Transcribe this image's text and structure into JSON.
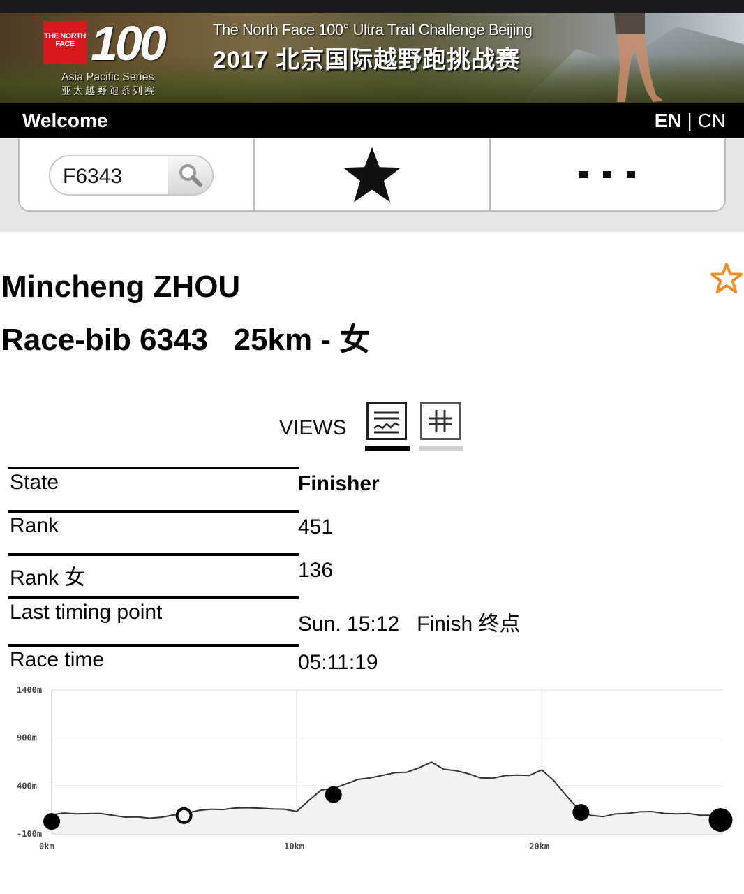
{
  "header": {
    "logo_brand": "THE NORTH FACE",
    "logo_number": "100",
    "series_en": "Asia Pacific Series",
    "series_cn": "亚太越野跑系列赛",
    "title_en": "The North Face 100° Ultra Trail Challenge Beijing",
    "title_cn": "2017 北京国际越野跑挑战赛"
  },
  "nav": {
    "welcome": "Welcome",
    "lang_en": "EN",
    "lang_sep": " | ",
    "lang_cn": "CN"
  },
  "toolbar": {
    "search_value": "F6343",
    "search_icon": "magnifier-icon",
    "favorites_icon": "star-icon",
    "more_icon": "ellipsis-icon"
  },
  "runner": {
    "name": "Mincheng ZHOU",
    "subtitle": "Race-bib 6343   25km - 女",
    "favorite_icon": "star-outline-icon",
    "favorite_color": "#f28c1c"
  },
  "views": {
    "label": "VIEWS",
    "options": [
      "chart-view-icon",
      "table-view-icon"
    ],
    "active": "chart-view-icon"
  },
  "info": [
    {
      "key": "State",
      "value": "Finisher",
      "bold": true
    },
    {
      "key": "Rank",
      "value": "451",
      "bold": false
    },
    {
      "key": "Rank 女",
      "value": "136",
      "bold": false
    },
    {
      "key": "Last timing point",
      "value": "Sun. 15:12   Finish 终点",
      "bold": false
    },
    {
      "key": "Race time",
      "value": "05:11:19",
      "bold": false
    }
  ],
  "chart_data": {
    "type": "area",
    "title": "",
    "xlabel": "",
    "ylabel": "",
    "xlim": [
      0,
      27.4
    ],
    "ylim": [
      -100,
      1400
    ],
    "x_ticks": [
      {
        "value": 0,
        "label": "0km"
      },
      {
        "value": 10,
        "label": "10km"
      },
      {
        "value": 20,
        "label": "20km"
      }
    ],
    "y_ticks": [
      {
        "value": -100,
        "label": "-100m"
      },
      {
        "value": 400,
        "label": "400m"
      },
      {
        "value": 900,
        "label": "900m"
      },
      {
        "value": 1400,
        "label": "1400m"
      }
    ],
    "grid": true,
    "elevation_profile": {
      "x": [
        0,
        0.5,
        1.0,
        1.5,
        2.0,
        2.5,
        3.0,
        3.5,
        4.0,
        4.5,
        5.0,
        5.5,
        6.0,
        6.5,
        7.0,
        7.5,
        8.0,
        8.5,
        9.0,
        9.5,
        10.0,
        10.5,
        11.0,
        11.5,
        12.0,
        12.5,
        13.0,
        13.5,
        14.0,
        14.5,
        15.0,
        15.5,
        16.0,
        16.5,
        17.0,
        17.5,
        18.0,
        18.5,
        19.0,
        19.5,
        20.0,
        20.5,
        21.0,
        21.5,
        22.0,
        22.5,
        23.0,
        23.5,
        24.0,
        24.5,
        25.0,
        25.5,
        26.0,
        26.5,
        27.0,
        27.4
      ],
      "y": [
        100,
        110,
        115,
        112,
        105,
        100,
        75,
        70,
        70,
        75,
        90,
        120,
        145,
        150,
        160,
        170,
        165,
        175,
        160,
        150,
        140,
        250,
        350,
        380,
        420,
        460,
        490,
        510,
        530,
        550,
        590,
        640,
        580,
        560,
        520,
        490,
        480,
        500,
        520,
        510,
        560,
        460,
        300,
        150,
        100,
        80,
        100,
        120,
        130,
        125,
        120,
        110,
        105,
        100,
        95,
        90
      ]
    },
    "checkpoints": [
      {
        "x": 0,
        "y": 30,
        "style": "filled"
      },
      {
        "x": 5.4,
        "y": 90,
        "style": "hollow"
      },
      {
        "x": 11.5,
        "y": 310,
        "style": "filled"
      },
      {
        "x": 21.6,
        "y": 125,
        "style": "filled"
      },
      {
        "x": 27.3,
        "y": 45,
        "style": "filled-large"
      }
    ],
    "fill_color": "#f2f2f2",
    "line_color": "#333333"
  }
}
